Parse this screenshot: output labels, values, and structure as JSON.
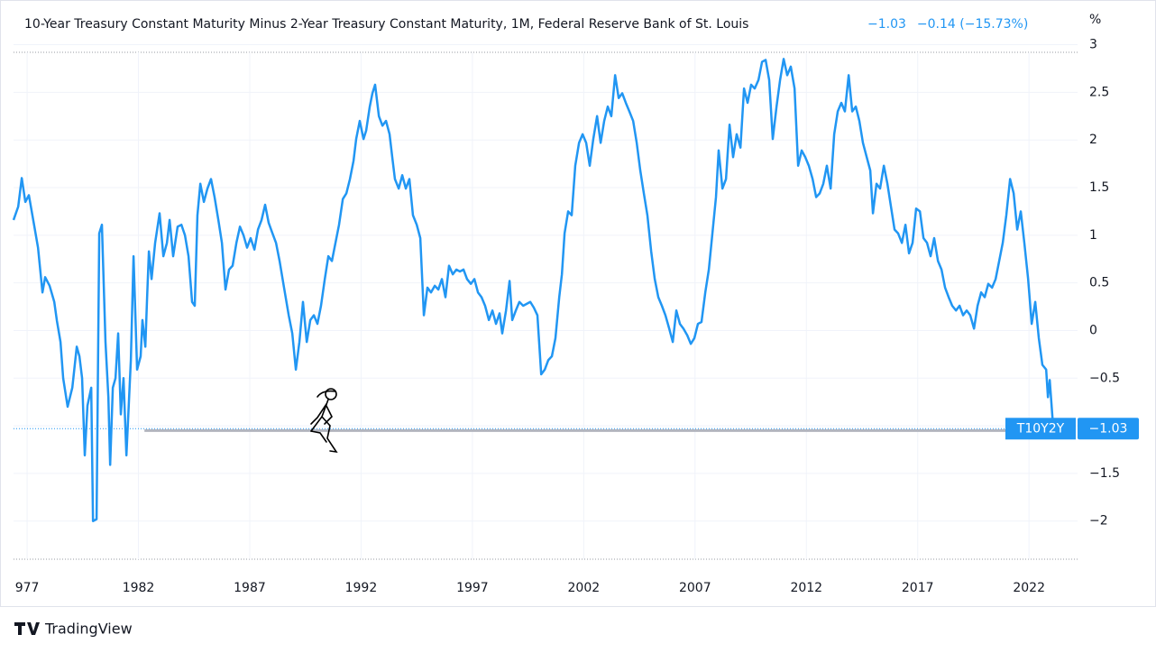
{
  "chart_data": {
    "type": "line",
    "title": "10-Year Treasury Constant Maturity Minus 2-Year Treasury Constant Maturity, 1M, Federal Reserve Bank of St. Louis",
    "header_values": [
      "−1.03",
      "−0.14 (−15.73%)"
    ],
    "y_unit": "%",
    "brand": "TradingView",
    "last_value_label": "−1.03",
    "annotation_line": {
      "value": -1.05,
      "x": [
        1982.27,
        2020.94
      ]
    },
    "xlim": [
      1976.39,
      2024.18
    ],
    "ylim": [
      -2.4,
      2.92
    ],
    "xticks": [
      {
        "value": 1977,
        "label": "977"
      },
      1982,
      1987,
      1992,
      1997,
      2002,
      2007,
      2012,
      2017,
      2022
    ],
    "yticks": [
      3,
      2.5,
      2,
      1.5,
      1,
      0.5,
      0,
      {
        "value": -0.5,
        "label": "−0.5"
      },
      {
        "value": -1,
        "label": "−1"
      },
      {
        "value": -1.5,
        "label": "−1.5"
      },
      {
        "value": -2,
        "label": "−2"
      }
    ],
    "grid": true,
    "series": [
      {
        "name": "T10Y2Y",
        "color": "#2196f3",
        "x": [
          1976.39,
          1976.6,
          1976.76,
          1976.92,
          1977.08,
          1977.32,
          1977.49,
          1977.69,
          1977.81,
          1978.01,
          1978.22,
          1978.34,
          1978.5,
          1978.62,
          1978.82,
          1979.03,
          1979.23,
          1979.35,
          1979.47,
          1979.59,
          1979.71,
          1979.88,
          1979.96,
          1980.12,
          1980.24,
          1980.36,
          1980.52,
          1980.65,
          1980.73,
          1980.85,
          1980.97,
          1981.09,
          1981.21,
          1981.33,
          1981.46,
          1981.66,
          1981.78,
          1981.94,
          1982.1,
          1982.18,
          1982.31,
          1982.39,
          1982.47,
          1982.59,
          1982.75,
          1982.95,
          1983.12,
          1983.28,
          1983.4,
          1983.56,
          1983.76,
          1983.93,
          1984.09,
          1984.25,
          1984.41,
          1984.53,
          1984.65,
          1984.78,
          1984.94,
          1985.1,
          1985.26,
          1985.42,
          1985.59,
          1985.75,
          1985.91,
          1986.07,
          1986.23,
          1986.4,
          1986.56,
          1986.72,
          1986.88,
          1987.04,
          1987.21,
          1987.37,
          1987.53,
          1987.69,
          1987.85,
          1988.02,
          1988.18,
          1988.34,
          1988.54,
          1988.75,
          1988.91,
          1989.07,
          1989.23,
          1989.39,
          1989.56,
          1989.72,
          1989.88,
          1990.04,
          1990.2,
          1990.37,
          1990.53,
          1990.69,
          1990.85,
          1991.01,
          1991.18,
          1991.34,
          1991.5,
          1991.66,
          1991.78,
          1991.94,
          1992.11,
          1992.23,
          1992.39,
          1992.51,
          1992.63,
          1992.8,
          1992.96,
          1993.12,
          1993.28,
          1993.4,
          1993.52,
          1993.69,
          1993.85,
          1994.01,
          1994.17,
          1994.33,
          1994.5,
          1994.66,
          1994.82,
          1994.98,
          1995.14,
          1995.31,
          1995.47,
          1995.63,
          1995.79,
          1995.95,
          1996.12,
          1996.28,
          1996.44,
          1996.6,
          1996.76,
          1996.93,
          1997.09,
          1997.25,
          1997.41,
          1997.57,
          1997.74,
          1997.9,
          1998.06,
          1998.22,
          1998.34,
          1998.51,
          1998.67,
          1998.79,
          1998.95,
          1999.11,
          1999.28,
          1999.44,
          1999.6,
          1999.76,
          1999.92,
          2000.09,
          2000.25,
          2000.41,
          2000.57,
          2000.73,
          2000.9,
          2001.02,
          2001.14,
          2001.3,
          2001.46,
          2001.62,
          2001.79,
          2001.95,
          2002.11,
          2002.27,
          2002.43,
          2002.6,
          2002.76,
          2002.92,
          2003.08,
          2003.24,
          2003.41,
          2003.57,
          2003.73,
          2003.89,
          2004.05,
          2004.22,
          2004.38,
          2004.54,
          2004.7,
          2004.86,
          2005.03,
          2005.19,
          2005.35,
          2005.51,
          2005.67,
          2005.84,
          2006.0,
          2006.16,
          2006.32,
          2006.48,
          2006.65,
          2006.81,
          2006.97,
          2007.13,
          2007.29,
          2007.46,
          2007.62,
          2007.78,
          2007.94,
          2008.06,
          2008.23,
          2008.39,
          2008.55,
          2008.71,
          2008.87,
          2009.04,
          2009.2,
          2009.36,
          2009.52,
          2009.68,
          2009.85,
          2010.01,
          2010.17,
          2010.33,
          2010.49,
          2010.66,
          2010.82,
          2010.98,
          2011.14,
          2011.3,
          2011.47,
          2011.63,
          2011.79,
          2011.95,
          2012.11,
          2012.28,
          2012.44,
          2012.6,
          2012.76,
          2012.92,
          2013.09,
          2013.25,
          2013.41,
          2013.57,
          2013.73,
          2013.9,
          2014.06,
          2014.22,
          2014.38,
          2014.54,
          2014.71,
          2014.87,
          2014.99,
          2015.15,
          2015.31,
          2015.48,
          2015.64,
          2015.8,
          2015.96,
          2016.12,
          2016.29,
          2016.45,
          2016.61,
          2016.77,
          2016.93,
          2017.1,
          2017.26,
          2017.42,
          2017.58,
          2017.74,
          2017.91,
          2018.07,
          2018.23,
          2018.39,
          2018.55,
          2018.72,
          2018.88,
          2019.04,
          2019.2,
          2019.36,
          2019.53,
          2019.69,
          2019.85,
          2020.01,
          2020.17,
          2020.34,
          2020.5,
          2020.66,
          2020.82,
          2020.98,
          2021.15,
          2021.31,
          2021.47,
          2021.63,
          2021.79,
          2021.96,
          2022.12,
          2022.28,
          2022.44,
          2022.6,
          2022.77,
          2022.85,
          2022.93,
          2023.09
        ],
        "values": [
          1.16,
          1.3,
          1.6,
          1.35,
          1.42,
          1.1,
          0.87,
          0.4,
          0.56,
          0.47,
          0.3,
          0.1,
          -0.12,
          -0.5,
          -0.8,
          -0.6,
          -0.17,
          -0.27,
          -0.5,
          -1.31,
          -0.79,
          -0.6,
          -2.0,
          -1.98,
          1.02,
          1.11,
          -0.12,
          -0.7,
          -1.41,
          -0.6,
          -0.5,
          -0.03,
          -0.88,
          -0.5,
          -1.31,
          -0.31,
          0.78,
          -0.41,
          -0.27,
          0.11,
          -0.17,
          0.35,
          0.83,
          0.54,
          0.92,
          1.23,
          0.78,
          0.92,
          1.16,
          0.78,
          1.09,
          1.11,
          1.0,
          0.78,
          0.3,
          0.26,
          1.21,
          1.54,
          1.35,
          1.49,
          1.59,
          1.4,
          1.16,
          0.92,
          0.43,
          0.64,
          0.68,
          0.92,
          1.09,
          1.0,
          0.87,
          0.97,
          0.85,
          1.06,
          1.16,
          1.32,
          1.13,
          1.02,
          0.92,
          0.73,
          0.45,
          0.16,
          -0.03,
          -0.41,
          -0.12,
          0.3,
          -0.12,
          0.11,
          0.16,
          0.07,
          0.26,
          0.54,
          0.78,
          0.73,
          0.92,
          1.11,
          1.38,
          1.44,
          1.59,
          1.78,
          2.01,
          2.2,
          2.01,
          2.1,
          2.35,
          2.49,
          2.58,
          2.25,
          2.15,
          2.2,
          2.06,
          1.82,
          1.59,
          1.49,
          1.63,
          1.49,
          1.59,
          1.21,
          1.11,
          0.97,
          0.16,
          0.45,
          0.4,
          0.47,
          0.43,
          0.54,
          0.35,
          0.68,
          0.59,
          0.64,
          0.62,
          0.64,
          0.54,
          0.49,
          0.54,
          0.4,
          0.35,
          0.26,
          0.11,
          0.21,
          0.07,
          0.18,
          -0.03,
          0.21,
          0.52,
          0.11,
          0.21,
          0.3,
          0.26,
          0.28,
          0.3,
          0.24,
          0.16,
          -0.46,
          -0.41,
          -0.31,
          -0.27,
          -0.08,
          0.35,
          0.59,
          1.02,
          1.25,
          1.21,
          1.73,
          1.97,
          2.06,
          1.97,
          1.73,
          2.01,
          2.25,
          1.97,
          2.2,
          2.35,
          2.25,
          2.68,
          2.44,
          2.49,
          2.39,
          2.3,
          2.2,
          1.97,
          1.68,
          1.44,
          1.21,
          0.83,
          0.54,
          0.35,
          0.26,
          0.16,
          0.02,
          -0.12,
          0.21,
          0.07,
          0.02,
          -0.05,
          -0.14,
          -0.08,
          0.07,
          0.09,
          0.4,
          0.64,
          1.02,
          1.4,
          1.89,
          1.49,
          1.59,
          2.16,
          1.82,
          2.06,
          1.92,
          2.54,
          2.39,
          2.58,
          2.54,
          2.63,
          2.82,
          2.84,
          2.63,
          2.01,
          2.35,
          2.63,
          2.85,
          2.68,
          2.77,
          2.54,
          1.73,
          1.89,
          1.82,
          1.73,
          1.59,
          1.4,
          1.44,
          1.54,
          1.73,
          1.49,
          2.06,
          2.3,
          2.39,
          2.3,
          2.68,
          2.3,
          2.35,
          2.2,
          1.97,
          1.82,
          1.68,
          1.23,
          1.54,
          1.49,
          1.73,
          1.54,
          1.3,
          1.06,
          1.02,
          0.92,
          1.11,
          0.81,
          0.92,
          1.28,
          1.25,
          0.97,
          0.92,
          0.78,
          0.97,
          0.73,
          0.64,
          0.45,
          0.35,
          0.26,
          0.21,
          0.26,
          0.16,
          0.21,
          0.16,
          0.02,
          0.26,
          0.4,
          0.35,
          0.49,
          0.45,
          0.54,
          0.73,
          0.92,
          1.21,
          1.59,
          1.44,
          1.06,
          1.25,
          0.92,
          0.54,
          0.07,
          0.3,
          -0.08,
          -0.36,
          -0.41,
          -0.7,
          -0.52,
          -1.03
        ]
      }
    ]
  }
}
